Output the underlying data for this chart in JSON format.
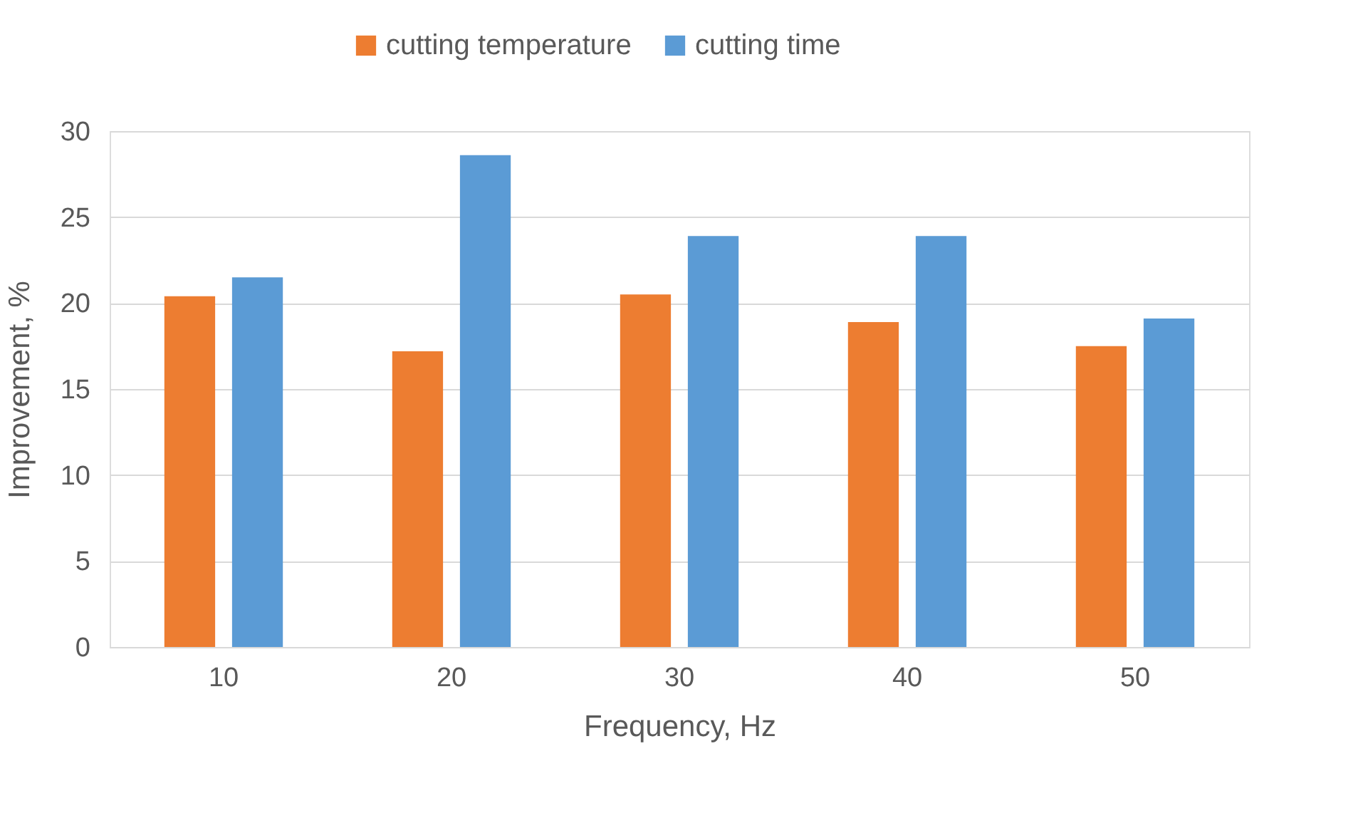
{
  "chart_data": {
    "type": "bar",
    "xlabel": "Frequency, Hz",
    "ylabel": "Improvement, %",
    "categories": [
      "10",
      "20",
      "30",
      "40",
      "50"
    ],
    "series": [
      {
        "name": "cutting temperature",
        "color": "#ed7d31",
        "values": [
          20.4,
          17.2,
          20.5,
          18.9,
          17.5
        ]
      },
      {
        "name": "cutting time",
        "color": "#5b9bd5",
        "values": [
          21.5,
          28.6,
          23.9,
          23.9,
          19.1
        ]
      }
    ],
    "ylim": [
      0,
      30
    ],
    "yticks": [
      0,
      5,
      10,
      15,
      20,
      25,
      30
    ],
    "grid": "y",
    "legend": "top"
  }
}
